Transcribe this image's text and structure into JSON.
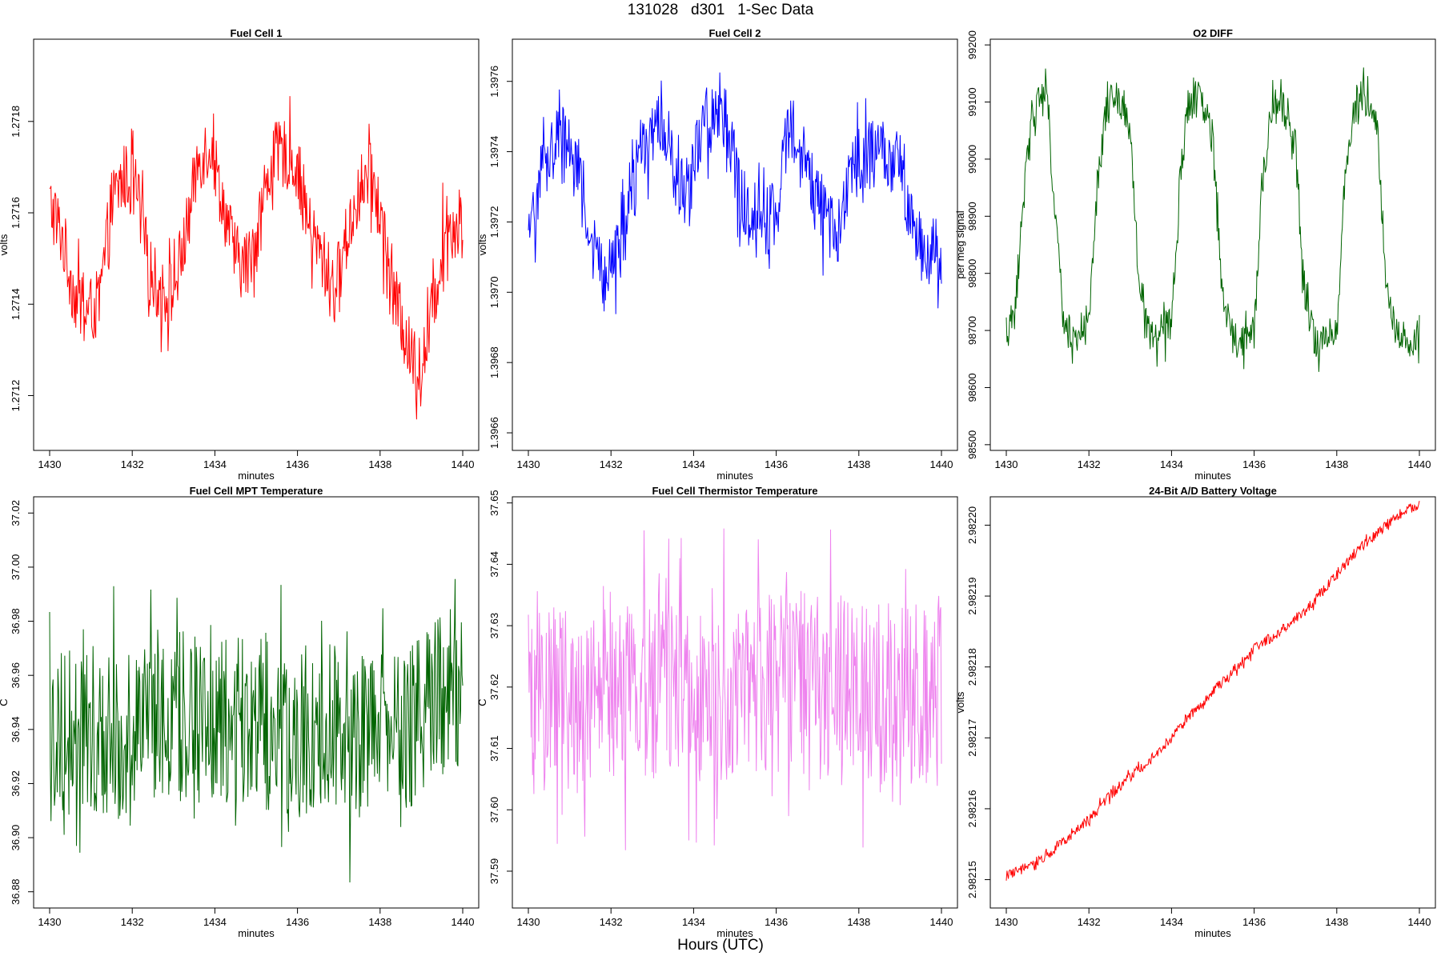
{
  "figure": {
    "title": "131028   d301   1-Sec Data",
    "xlabel": "Hours (UTC)"
  },
  "chart_data": [
    {
      "id": "fc1",
      "type": "line",
      "title": "Fuel Cell 1",
      "xlabel": "minutes",
      "ylabel": "volts",
      "xlim": [
        1430,
        1440
      ],
      "ylim": [
        1.27108,
        1.27198
      ],
      "xticks": [
        1430,
        1432,
        1434,
        1436,
        1438,
        1440
      ],
      "yticks": [
        1.2712,
        1.2714,
        1.2716,
        1.2718
      ],
      "ytick_labels": [
        "1.2712",
        "1.2714",
        "1.2716",
        "1.2718"
      ],
      "color": "#ff0000",
      "series": [
        {
          "x": [
            1430.0,
            1430.3,
            1430.6,
            1430.9,
            1431.2,
            1431.5,
            1431.8,
            1432.1,
            1432.4,
            1432.7,
            1433.0,
            1433.3,
            1433.6,
            1433.9,
            1434.2,
            1434.5,
            1434.8,
            1435.1,
            1435.4,
            1435.7,
            1436.0,
            1436.3,
            1436.6,
            1436.9,
            1437.2,
            1437.5,
            1437.8,
            1438.1,
            1438.4,
            1438.7,
            1439.0,
            1439.3,
            1439.6,
            1439.9
          ],
          "values": [
            1.27162,
            1.27155,
            1.27142,
            1.27138,
            1.2714,
            1.27162,
            1.27168,
            1.27165,
            1.27148,
            1.27142,
            1.27143,
            1.27155,
            1.27172,
            1.27175,
            1.27162,
            1.2715,
            1.27148,
            1.2716,
            1.27172,
            1.27173,
            1.2717,
            1.27156,
            1.2715,
            1.27143,
            1.27155,
            1.27165,
            1.27168,
            1.27155,
            1.2714,
            1.2713,
            1.27125,
            1.2714,
            1.27158,
            1.27157
          ]
        }
      ]
    },
    {
      "id": "fc2",
      "type": "line",
      "title": "Fuel Cell 2",
      "xlabel": "minutes",
      "ylabel": "volts",
      "xlim": [
        1430,
        1440
      ],
      "ylim": [
        1.39655,
        1.39772
      ],
      "xticks": [
        1430,
        1432,
        1434,
        1436,
        1438,
        1440
      ],
      "yticks": [
        1.3966,
        1.3968,
        1.397,
        1.3972,
        1.3974,
        1.3976
      ],
      "ytick_labels": [
        "1.3966",
        "1.3968",
        "1.3970",
        "1.3972",
        "1.3974",
        "1.3976"
      ],
      "color": "#0000ff",
      "series": [
        {
          "x": [
            1430.0,
            1430.3,
            1430.6,
            1430.9,
            1431.2,
            1431.5,
            1431.8,
            1432.1,
            1432.4,
            1432.7,
            1433.0,
            1433.3,
            1433.6,
            1433.9,
            1434.2,
            1434.5,
            1434.8,
            1435.1,
            1435.4,
            1435.7,
            1436.0,
            1436.3,
            1436.6,
            1436.9,
            1437.2,
            1437.5,
            1437.8,
            1438.1,
            1438.4,
            1438.7,
            1439.0,
            1439.3,
            1439.6,
            1439.9
          ],
          "values": [
            1.39712,
            1.39735,
            1.39742,
            1.39745,
            1.39738,
            1.39715,
            1.39705,
            1.3971,
            1.39718,
            1.3974,
            1.39745,
            1.39748,
            1.3973,
            1.39728,
            1.39748,
            1.3975,
            1.39748,
            1.3973,
            1.39718,
            1.3972,
            1.39722,
            1.39748,
            1.39745,
            1.39728,
            1.3972,
            1.39718,
            1.39735,
            1.39738,
            1.3974,
            1.39738,
            1.39735,
            1.3972,
            1.3971,
            1.39712
          ]
        }
      ]
    },
    {
      "id": "o2",
      "type": "line",
      "title": "O2 DIFF",
      "xlabel": "minutes",
      "ylabel": "per meg signal",
      "xlim": [
        1430,
        1440
      ],
      "ylim": [
        98490,
        99210
      ],
      "xticks": [
        1430,
        1432,
        1434,
        1436,
        1438,
        1440
      ],
      "yticks": [
        98500,
        98600,
        98700,
        98800,
        98900,
        99000,
        99100,
        99200
      ],
      "ytick_labels": [
        "98500",
        "98600",
        "98700",
        "98800",
        "98900",
        "99000",
        "99100",
        "99200"
      ],
      "color": "#006400",
      "series": [
        {
          "x": [
            1430.0,
            1430.2,
            1430.4,
            1430.6,
            1430.8,
            1431.0,
            1431.2,
            1431.4,
            1431.6,
            1431.8,
            1432.0,
            1432.2,
            1432.4,
            1432.6,
            1432.8,
            1433.0,
            1433.2,
            1433.4,
            1433.6,
            1433.8,
            1434.0,
            1434.2,
            1434.4,
            1434.6,
            1434.8,
            1435.0,
            1435.2,
            1435.4,
            1435.6,
            1435.8,
            1436.0,
            1436.2,
            1436.4,
            1436.6,
            1436.8,
            1437.0,
            1437.2,
            1437.4,
            1437.6,
            1437.8,
            1438.0,
            1438.2,
            1438.4,
            1438.6,
            1438.8,
            1439.0,
            1439.2,
            1439.4,
            1439.6,
            1439.8,
            1440.0
          ],
          "values": [
            98700,
            98720,
            98920,
            99080,
            99110,
            99100,
            98880,
            98710,
            98690,
            98700,
            98700,
            98950,
            99080,
            99110,
            99100,
            99060,
            98790,
            98700,
            98690,
            98700,
            98710,
            98960,
            99090,
            99110,
            99090,
            99040,
            98790,
            98700,
            98680,
            98690,
            98700,
            98960,
            99080,
            99100,
            99080,
            99020,
            98780,
            98700,
            98670,
            98690,
            98700,
            98960,
            99090,
            99110,
            99100,
            99040,
            98780,
            98710,
            98690,
            98680,
            98700
          ]
        }
      ]
    },
    {
      "id": "mpt",
      "type": "line",
      "title": "Fuel Cell MPT Temperature",
      "xlabel": "minutes",
      "ylabel": "C",
      "xlim": [
        1430,
        1440
      ],
      "ylim": [
        36.874,
        37.026
      ],
      "xticks": [
        1430,
        1432,
        1434,
        1436,
        1438,
        1440
      ],
      "yticks": [
        36.88,
        36.9,
        36.92,
        36.94,
        36.96,
        36.98,
        37.0,
        37.02
      ],
      "ytick_labels": [
        "36.88",
        "36.90",
        "36.92",
        "36.94",
        "36.96",
        "36.98",
        "37.00",
        "37.02"
      ],
      "color": "#006400",
      "series": [
        {
          "x": [
            1430.0,
            1430.5,
            1431.0,
            1431.5,
            1432.0,
            1432.5,
            1433.0,
            1433.5,
            1434.0,
            1434.5,
            1435.0,
            1435.5,
            1436.0,
            1436.5,
            1437.0,
            1437.5,
            1438.0,
            1438.5,
            1439.0,
            1439.5,
            1440.0
          ],
          "values": [
            36.935,
            36.94,
            36.942,
            36.938,
            36.94,
            36.945,
            36.946,
            36.944,
            36.943,
            36.945,
            36.942,
            36.94,
            36.938,
            36.941,
            36.94,
            36.939,
            36.938,
            36.941,
            36.945,
            36.95,
            36.96
          ]
        }
      ]
    },
    {
      "id": "therm",
      "type": "line",
      "title": "Fuel Cell Thermistor Temperature",
      "xlabel": "minutes",
      "ylabel": "C",
      "xlim": [
        1430,
        1440
      ],
      "ylim": [
        37.584,
        37.651
      ],
      "xticks": [
        1430,
        1432,
        1434,
        1436,
        1438,
        1440
      ],
      "yticks": [
        37.59,
        37.6,
        37.61,
        37.62,
        37.63,
        37.64,
        37.65
      ],
      "ytick_labels": [
        "37.59",
        "37.60",
        "37.61",
        "37.62",
        "37.63",
        "37.64",
        "37.65"
      ],
      "color": "#ee82ee",
      "series": [
        {
          "x": [
            1430.0,
            1430.5,
            1431.0,
            1431.5,
            1432.0,
            1432.5,
            1433.0,
            1433.5,
            1434.0,
            1434.5,
            1435.0,
            1435.5,
            1436.0,
            1436.5,
            1437.0,
            1437.5,
            1438.0,
            1438.5,
            1439.0,
            1439.5,
            1440.0
          ],
          "values": [
            37.617,
            37.618,
            37.618,
            37.617,
            37.618,
            37.62,
            37.62,
            37.621,
            37.62,
            37.619,
            37.619,
            37.62,
            37.621,
            37.621,
            37.62,
            37.619,
            37.619,
            37.619,
            37.619,
            37.619,
            37.618
          ]
        }
      ]
    },
    {
      "id": "batt",
      "type": "line",
      "title": "24-Bit A/D Battery Voltage",
      "xlabel": "minutes",
      "ylabel": "volts",
      "xlim": [
        1430,
        1440
      ],
      "ylim": [
        2.982146,
        2.982204
      ],
      "xticks": [
        1430,
        1432,
        1434,
        1436,
        1438,
        1440
      ],
      "yticks": [
        2.98215,
        2.98216,
        2.98217,
        2.98218,
        2.98219,
        2.9822
      ],
      "ytick_labels": [
        "2.98215",
        "2.98216",
        "2.98217",
        "2.98218",
        "2.98219",
        "2.98220"
      ],
      "color": "#ff0000",
      "series": [
        {
          "x": [
            1430.0,
            1430.5,
            1431.0,
            1431.5,
            1432.0,
            1432.5,
            1433.0,
            1433.5,
            1434.0,
            1434.5,
            1435.0,
            1435.5,
            1436.0,
            1436.5,
            1437.0,
            1437.5,
            1438.0,
            1438.5,
            1439.0,
            1439.5,
            1440.0
          ],
          "values": [
            2.9821505,
            2.9821518,
            2.9821535,
            2.982156,
            2.9821585,
            2.9821618,
            2.9821645,
            2.982167,
            2.98217,
            2.9821735,
            2.9821765,
            2.9821795,
            2.9821825,
            2.9821845,
            2.9821868,
            2.9821895,
            2.982193,
            2.9821965,
            2.982199,
            2.9822015,
            2.982203
          ]
        }
      ]
    }
  ]
}
